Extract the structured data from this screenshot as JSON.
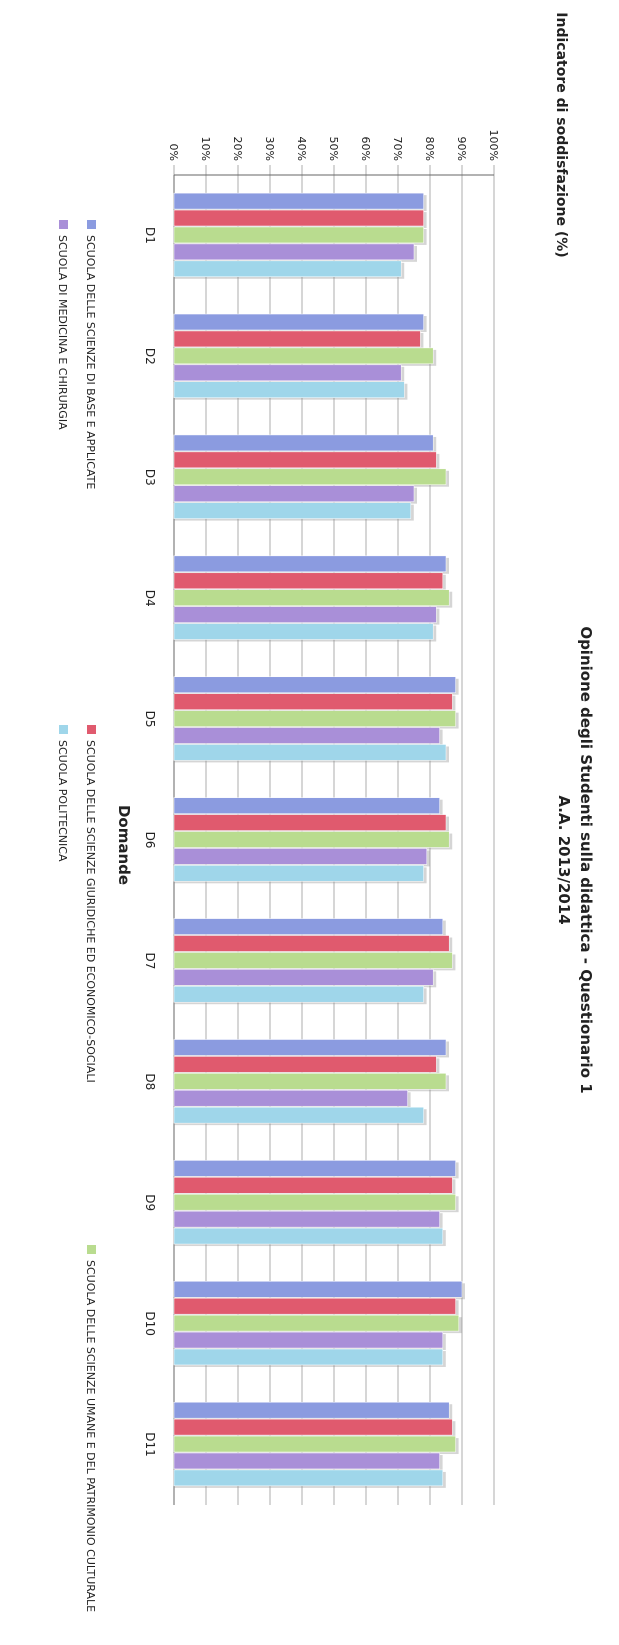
{
  "chart_data": {
    "type": "bar",
    "title": "Opinione degli Studenti sulla didattica - Questionario 1",
    "subtitle": "A.A. 2013/2014",
    "xlabel": "Domande",
    "ylabel": "Indicatore di soddisfazione (%)",
    "ylim": [
      0,
      100
    ],
    "yticks": [
      "0%",
      "10%",
      "20%",
      "30%",
      "40%",
      "50%",
      "60%",
      "70%",
      "80%",
      "90%",
      "100%"
    ],
    "categories": [
      "D1",
      "D2",
      "D3",
      "D4",
      "D5",
      "D6",
      "D7",
      "D8",
      "D9",
      "D10",
      "D11"
    ],
    "grid": true,
    "legend_position": "bottom",
    "series": [
      {
        "name": "SCUOLA DELLE SCIENZE DI BASE E APPLICATE",
        "color": "#8b9be0",
        "values": [
          78,
          78,
          81,
          85,
          88,
          83,
          84,
          85,
          88,
          90,
          86
        ]
      },
      {
        "name": "SCUOLA DELLE SCIENZE GIURIDICHE ED ECONOMICO-SOCIALI",
        "color": "#e05a6e",
        "values": [
          78,
          77,
          82,
          84,
          87,
          85,
          86,
          82,
          87,
          88,
          87
        ]
      },
      {
        "name": "SCUOLA DELLE SCIENZE UMANE E DEL PATRIMONIO CULTURALE",
        "color": "#b9dc8f",
        "values": [
          78,
          81,
          85,
          86,
          88,
          86,
          87,
          85,
          88,
          89,
          88
        ]
      },
      {
        "name": "SCUOLA DI MEDICINA E CHIRURGIA",
        "color": "#a98fd8",
        "values": [
          75,
          71,
          75,
          82,
          83,
          79,
          81,
          73,
          83,
          84,
          83
        ]
      },
      {
        "name": "SCUOLA POLITECNICA",
        "color": "#9fd6ea",
        "values": [
          71,
          72,
          74,
          81,
          85,
          78,
          78,
          78,
          84,
          84,
          84
        ]
      }
    ]
  }
}
